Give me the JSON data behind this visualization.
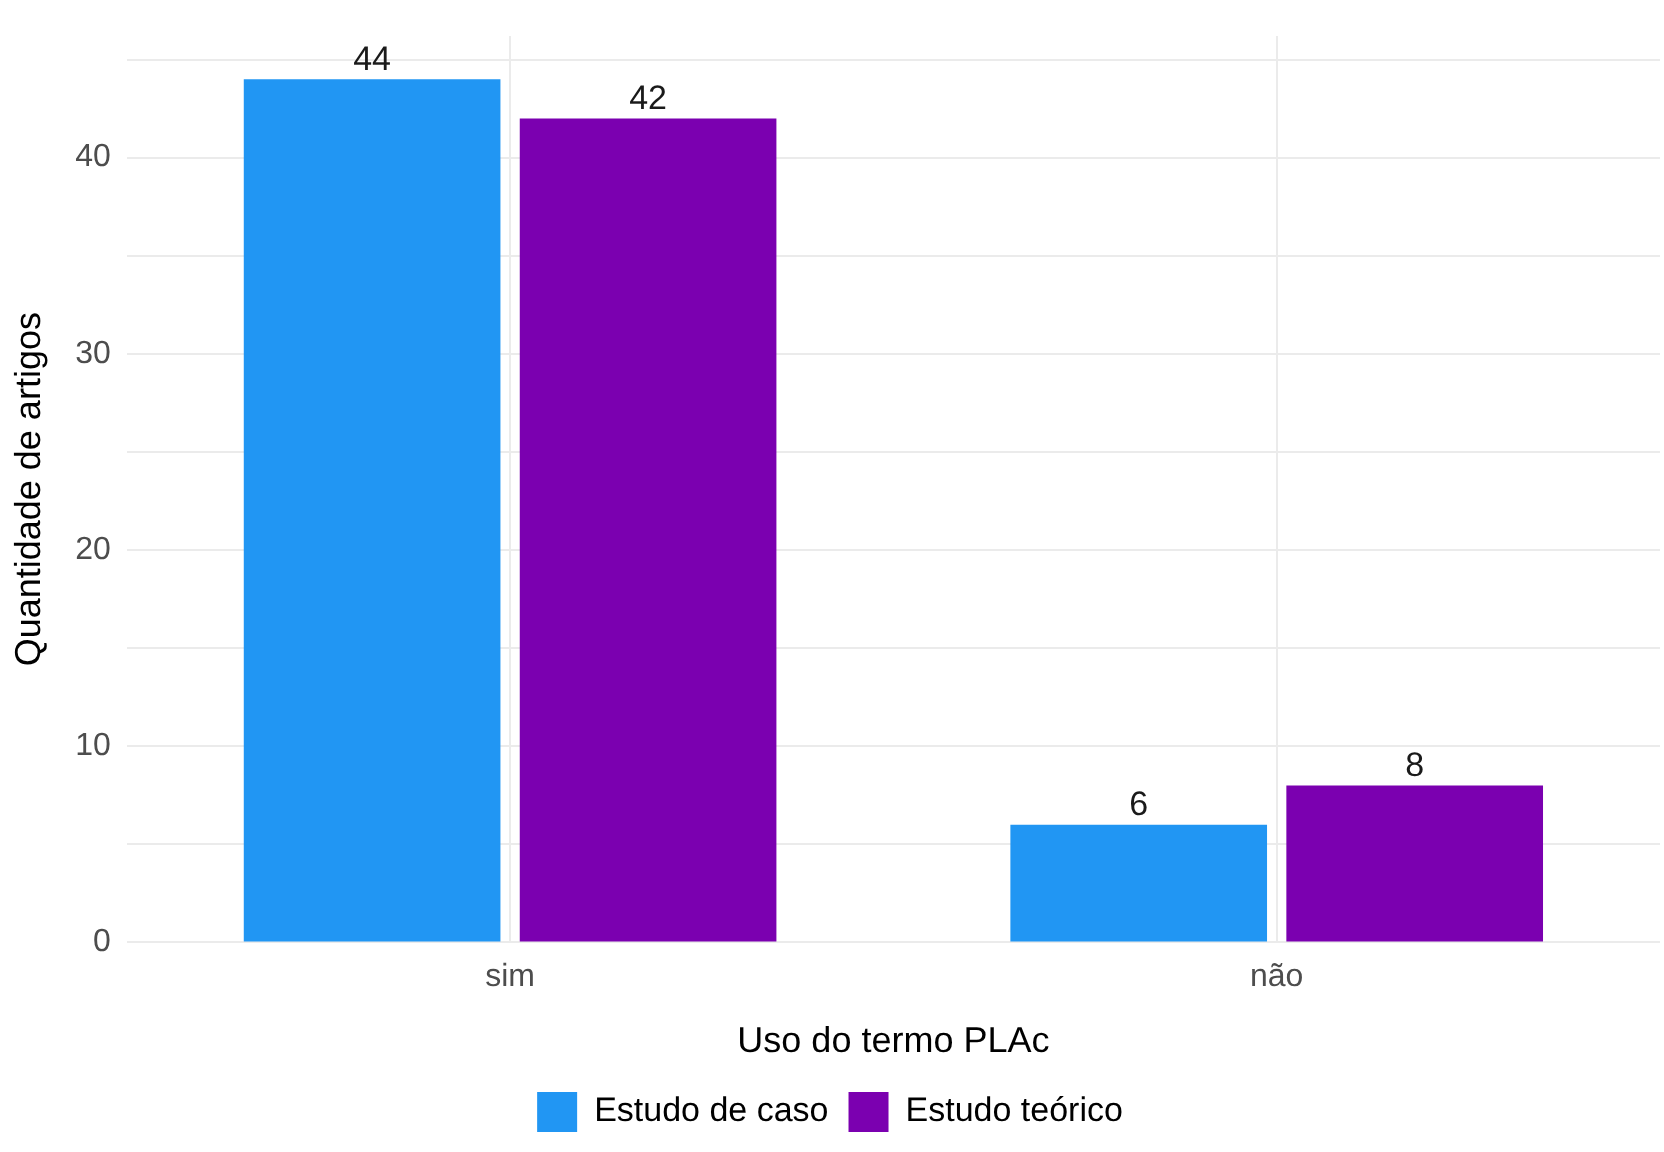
{
  "chart_data": {
    "type": "bar",
    "xlabel": "Uso do termo PLAc",
    "ylabel": "Quantidade de artigos",
    "categories": [
      "sim",
      "não"
    ],
    "series": [
      {
        "name": "Estudo de caso",
        "color": "#2196f3",
        "values": [
          44,
          6
        ]
      },
      {
        "name": "Estudo teórico",
        "color": "#7b00b0",
        "values": [
          42,
          8
        ]
      }
    ],
    "ylim": [
      0,
      46.2
    ],
    "yticks": [
      0,
      {
        "value": 5,
        "label": null
      },
      10,
      {
        "value": 15,
        "label": null
      },
      20,
      {
        "value": 25,
        "label": null
      },
      30,
      {
        "value": 35,
        "label": null
      },
      40,
      {
        "value": 45,
        "label": null
      }
    ],
    "grid": true,
    "legend": "bottom",
    "data_labels": true
  }
}
